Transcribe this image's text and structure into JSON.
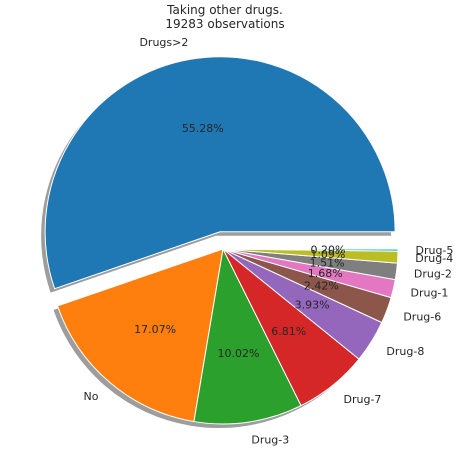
{
  "chart_data": {
    "type": "pie",
    "title": "Taking other drugs.",
    "subtitle": "19283 observations",
    "slices": [
      {
        "label": "Drugs>2",
        "percent": 55.28,
        "pct_label": "55.28%",
        "color": "#1f77b4",
        "exploded": true
      },
      {
        "label": "No",
        "percent": 17.07,
        "pct_label": "17.07%",
        "color": "#ff7f0e",
        "exploded": false
      },
      {
        "label": "Drug-3",
        "percent": 10.02,
        "pct_label": "10.02%",
        "color": "#2ca02c",
        "exploded": false
      },
      {
        "label": "Drug-7",
        "percent": 6.81,
        "pct_label": "6.81%",
        "color": "#d62728",
        "exploded": false
      },
      {
        "label": "Drug-8",
        "percent": 3.93,
        "pct_label": "3.93%",
        "color": "#9467bd",
        "exploded": false
      },
      {
        "label": "Drug-6",
        "percent": 2.42,
        "pct_label": "2.42%",
        "color": "#8c564b",
        "exploded": false
      },
      {
        "label": "Drug-1",
        "percent": 1.68,
        "pct_label": "1.68%",
        "color": "#e377c2",
        "exploded": false
      },
      {
        "label": "Drug-2",
        "percent": 1.51,
        "pct_label": "1.51%",
        "color": "#7f7f7f",
        "exploded": false
      },
      {
        "label": "Drug-4",
        "percent": 1.09,
        "pct_label": "1.09%",
        "color": "#bcbd22",
        "exploded": false
      },
      {
        "label": "Drug-5",
        "percent": 0.2,
        "pct_label": "0.20%",
        "color": "#17becf",
        "exploded": false
      }
    ],
    "start_angle_deg": 0,
    "direction": "counterclockwise",
    "shadow": true,
    "legend": "none"
  }
}
